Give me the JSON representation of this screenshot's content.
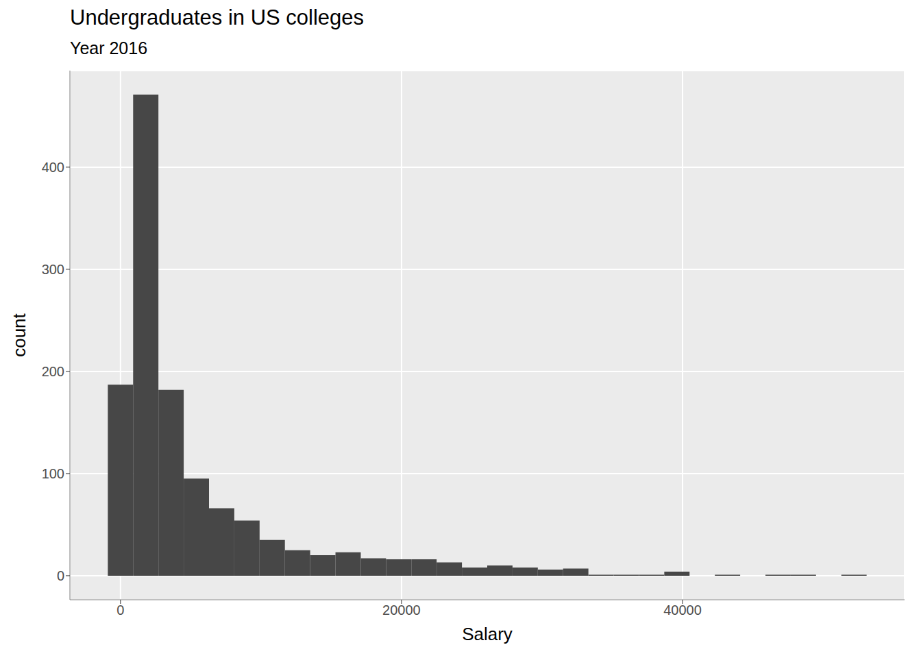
{
  "chart_data": {
    "type": "histogram",
    "title": "Undergraduates in US colleges",
    "subtitle": "Year 2016",
    "x_label": "Salary",
    "y_label": "count",
    "bins": [
      -900,
      900,
      2700,
      4500,
      6300,
      8100,
      9900,
      11700,
      13500,
      15300,
      17100,
      18900,
      20700,
      22500,
      24300,
      26100,
      27900,
      29700,
      31500,
      33300,
      35100,
      36900,
      38700,
      40500,
      42300,
      44100,
      45900,
      47700,
      49500,
      51300,
      53100
    ],
    "values": [
      187,
      471,
      182,
      95,
      66,
      54,
      35,
      25,
      20,
      23,
      17,
      16,
      16,
      13,
      8,
      10,
      8,
      6,
      7,
      1,
      1,
      1,
      4,
      0,
      1,
      0,
      1,
      1,
      0,
      1
    ],
    "color": "#474747",
    "xlim": [
      -3600,
      55800
    ],
    "ylim": [
      -23.55,
      494.55
    ],
    "xticks": [
      0,
      20000,
      40000
    ],
    "yticks": [
      0,
      100,
      200,
      300,
      400
    ],
    "grid": true
  }
}
